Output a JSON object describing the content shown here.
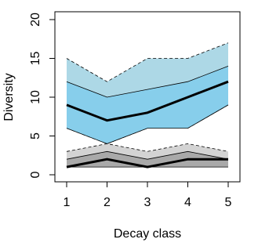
{
  "chart_data": {
    "type": "band",
    "xlabel": "Decay class",
    "ylabel": "Diversity",
    "x": [
      1,
      2,
      3,
      4,
      5
    ],
    "xlim": [
      1,
      5
    ],
    "xticks": [
      1,
      2,
      3,
      4,
      5
    ],
    "ylim": [
      0,
      20
    ],
    "yticks": [
      0,
      5,
      10,
      15,
      20
    ],
    "bands": [
      {
        "color": "#add8e6",
        "border_style": "dashed",
        "upper": [
          15,
          12,
          15,
          15,
          17
        ],
        "lower": [
          6,
          4,
          6,
          6,
          9
        ]
      },
      {
        "color": "#87ceeb",
        "border_style": "solid",
        "upper": [
          12,
          10,
          11,
          12,
          14
        ],
        "lower": [
          6,
          4,
          6,
          6,
          9
        ]
      },
      {
        "color": "#d3d3d3",
        "border_style": "dashed",
        "upper": [
          3,
          4,
          3,
          4,
          3
        ],
        "lower": [
          1,
          1,
          1,
          1,
          1
        ]
      },
      {
        "color": "#a9a9a9",
        "border_style": "solid",
        "upper": [
          2,
          3,
          2,
          3,
          2
        ],
        "lower": [
          1,
          1,
          1,
          1,
          1
        ]
      }
    ],
    "lines": [
      {
        "color": "#000000",
        "values": [
          9,
          7,
          8,
          10,
          12
        ]
      },
      {
        "color": "#000000",
        "values": [
          1,
          2,
          1,
          2,
          2
        ]
      }
    ]
  }
}
